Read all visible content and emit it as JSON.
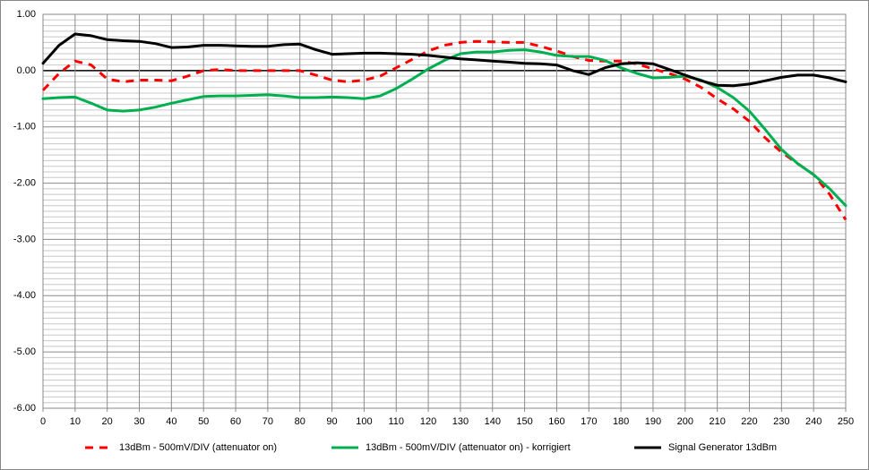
{
  "chart_data": {
    "type": "line",
    "x": [
      0,
      5,
      10,
      15,
      20,
      25,
      30,
      35,
      40,
      45,
      50,
      55,
      60,
      65,
      70,
      75,
      80,
      85,
      90,
      95,
      100,
      105,
      110,
      115,
      120,
      125,
      130,
      135,
      140,
      145,
      150,
      155,
      160,
      165,
      170,
      175,
      180,
      185,
      190,
      195,
      200,
      205,
      210,
      215,
      220,
      225,
      230,
      235,
      240,
      245,
      250
    ],
    "xlim": [
      0,
      250
    ],
    "xticks": [
      0,
      10,
      20,
      30,
      40,
      50,
      60,
      70,
      80,
      90,
      100,
      110,
      120,
      130,
      140,
      150,
      160,
      170,
      180,
      190,
      200,
      210,
      220,
      230,
      240,
      250
    ],
    "ylim": [
      -6,
      1
    ],
    "yticks": [
      {
        "value": -6,
        "label": "-6.00"
      },
      {
        "value": -5,
        "label": "-5.00"
      },
      {
        "value": -4,
        "label": "-4.00"
      },
      {
        "value": -3,
        "label": "-3.00"
      },
      {
        "value": -2,
        "label": "-2.00"
      },
      {
        "value": -1,
        "label": "-1.00"
      },
      {
        "value": 0,
        "label": "0.00"
      },
      {
        "value": 1,
        "label": "1.00"
      }
    ],
    "grid": true,
    "legend": "bottom",
    "series": [
      {
        "name": "13dBm - 500mV/DIV (attenuator on)",
        "color": "#ff0000",
        "dashed": true,
        "values": [
          -0.35,
          -0.05,
          0.17,
          0.1,
          -0.15,
          -0.2,
          -0.17,
          -0.17,
          -0.18,
          -0.1,
          0.0,
          0.02,
          0.0,
          0.0,
          0.0,
          0.0,
          0.0,
          -0.08,
          -0.17,
          -0.2,
          -0.17,
          -0.1,
          0.05,
          0.2,
          0.35,
          0.45,
          0.5,
          0.52,
          0.51,
          0.5,
          0.5,
          0.43,
          0.35,
          0.25,
          0.18,
          0.17,
          0.17,
          0.12,
          0.03,
          -0.05,
          -0.15,
          -0.3,
          -0.5,
          -0.68,
          -0.9,
          -1.2,
          -1.45,
          -1.65,
          -1.85,
          -2.2,
          -2.65
        ]
      },
      {
        "name": "13dBm - 500mV/DIV (attenuator on) - korrigiert",
        "color": "#00b050",
        "dashed": false,
        "values": [
          -0.5,
          -0.48,
          -0.47,
          -0.58,
          -0.7,
          -0.72,
          -0.7,
          -0.65,
          -0.58,
          -0.52,
          -0.46,
          -0.45,
          -0.45,
          -0.44,
          -0.43,
          -0.45,
          -0.48,
          -0.48,
          -0.47,
          -0.48,
          -0.5,
          -0.45,
          -0.32,
          -0.15,
          0.03,
          0.18,
          0.3,
          0.33,
          0.33,
          0.36,
          0.37,
          0.33,
          0.27,
          0.25,
          0.25,
          0.18,
          0.05,
          -0.05,
          -0.13,
          -0.12,
          -0.1,
          -0.17,
          -0.3,
          -0.48,
          -0.72,
          -1.05,
          -1.4,
          -1.65,
          -1.85,
          -2.1,
          -2.4
        ]
      },
      {
        "name": "Signal Generator 13dBm",
        "color": "#000000",
        "dashed": false,
        "values": [
          0.13,
          0.45,
          0.65,
          0.62,
          0.55,
          0.53,
          0.52,
          0.48,
          0.41,
          0.42,
          0.45,
          0.45,
          0.44,
          0.43,
          0.43,
          0.46,
          0.47,
          0.37,
          0.29,
          0.3,
          0.31,
          0.31,
          0.3,
          0.29,
          0.27,
          0.24,
          0.21,
          0.19,
          0.17,
          0.15,
          0.13,
          0.12,
          0.1,
          0.0,
          -0.07,
          0.05,
          0.12,
          0.14,
          0.12,
          0.02,
          -0.08,
          -0.18,
          -0.26,
          -0.27,
          -0.24,
          -0.18,
          -0.12,
          -0.08,
          -0.08,
          -0.13,
          -0.2
        ]
      }
    ]
  }
}
